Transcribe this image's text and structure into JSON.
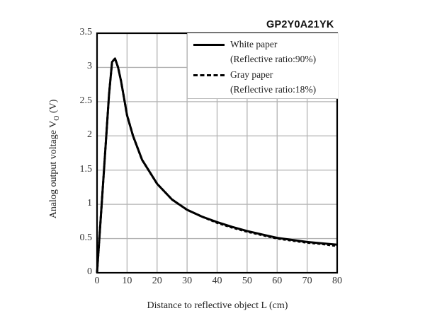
{
  "chart_data": {
    "type": "line",
    "title": "GP2Y0A21YK",
    "xlabel": "Distance to reflective object L (cm)",
    "ylabel": "Analog output voltage V",
    "ylabel_subscript": "O",
    "ylabel_unit": " (V)",
    "xlim": [
      0,
      80
    ],
    "ylim": [
      0,
      3.5
    ],
    "x_ticks": [
      "0",
      "10",
      "20",
      "30",
      "40",
      "50",
      "60",
      "70",
      "80"
    ],
    "y_ticks": [
      "0",
      "0.5",
      "1",
      "1.5",
      "2",
      "2.5",
      "3",
      "3.5"
    ],
    "grid": true,
    "legend_position": "upper right",
    "series": [
      {
        "name": "White paper",
        "note": "(Reflective ratio:90%)",
        "style": "solid",
        "x": [
          0,
          2,
          4,
          5,
          6,
          7,
          8,
          10,
          12,
          15,
          20,
          25,
          30,
          35,
          40,
          45,
          50,
          55,
          60,
          65,
          70,
          75,
          80
        ],
        "y": [
          0,
          1.3,
          2.6,
          3.08,
          3.13,
          3.0,
          2.8,
          2.3,
          2.0,
          1.65,
          1.3,
          1.07,
          0.92,
          0.82,
          0.74,
          0.67,
          0.61,
          0.56,
          0.51,
          0.48,
          0.45,
          0.43,
          0.41
        ]
      },
      {
        "name": "Gray paper",
        "note": "(Reflective ratio:18%)",
        "style": "dashed",
        "x": [
          0,
          2,
          4,
          5,
          6,
          7,
          8,
          10,
          12,
          15,
          20,
          25,
          30,
          35,
          40,
          45,
          50,
          55,
          60,
          65,
          70,
          75,
          80
        ],
        "y": [
          0,
          1.3,
          2.6,
          3.08,
          3.13,
          3.0,
          2.8,
          2.3,
          2.0,
          1.65,
          1.3,
          1.07,
          0.92,
          0.82,
          0.73,
          0.66,
          0.6,
          0.55,
          0.5,
          0.47,
          0.44,
          0.42,
          0.39
        ]
      }
    ]
  },
  "colors": {
    "line": "#000000",
    "grid": "#b3b3b3",
    "frame": "#000000"
  }
}
